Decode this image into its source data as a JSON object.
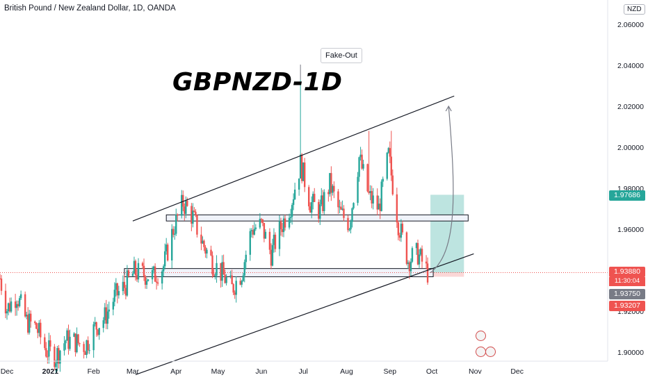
{
  "header": {
    "symbol_line": "British Pound / New Zealand Dollar, 1D, OANDA",
    "currency_badge": "NZD"
  },
  "annotations": {
    "title": "GBPNZD-1D",
    "callout": "Fake-Out"
  },
  "price_tags": {
    "green": "1.97686",
    "last": "1.93880",
    "countdown": "11:30:04",
    "gray": "1.93750",
    "red": "1.93207"
  },
  "colors": {
    "up": "#26a69a",
    "down": "#ef5350",
    "box_fill": "#f0f3fa",
    "tp_zone": "#b2dfdb",
    "sl_zone": "#fbd3d3",
    "last_line": "#ef5350",
    "channel": "#131722"
  },
  "chart_data": {
    "type": "candlestick",
    "title": "",
    "xlabel": "",
    "ylabel": "",
    "ylim": [
      1.888,
      2.068
    ],
    "y_ticks": [
      "2.06000",
      "2.04000",
      "2.02000",
      "2.00000",
      "1.98000",
      "1.96000",
      "1.94000",
      "1.92000",
      "1.90000"
    ],
    "x_ticks": [
      "Dec",
      "2021",
      "Feb",
      "Mar",
      "Apr",
      "May",
      "Jun",
      "Jul",
      "Aug",
      "Sep",
      "Oct",
      "Nov",
      "Dec"
    ],
    "series": [
      {
        "name": "GBPNZD",
        "close_path": [
          [
            "Nov 26 2020",
            1.936
          ],
          [
            "Dec 1 2020",
            1.921
          ],
          [
            "Dec 8 2020",
            1.928
          ],
          [
            "Dec 15 2020",
            1.915
          ],
          [
            "Dec 22 2020",
            1.912
          ],
          [
            "Dec 29 2020",
            1.901
          ],
          [
            "Jan 5 2021",
            1.898
          ],
          [
            "Jan 12 2021",
            1.906
          ],
          [
            "Jan 19 2021",
            1.905
          ],
          [
            "Jan 26 2021",
            1.903
          ],
          [
            "Feb 2 2021",
            1.912
          ],
          [
            "Feb 9 2021",
            1.917
          ],
          [
            "Feb 16 2021",
            1.927
          ],
          [
            "Feb 23 2021",
            1.932
          ],
          [
            "Mar 2 2021",
            1.939
          ],
          [
            "Mar 9 2021",
            1.938
          ],
          [
            "Mar 16 2021",
            1.937
          ],
          [
            "Mar 23 2021",
            1.942
          ],
          [
            "Mar 30 2021",
            1.96
          ],
          [
            "Apr 6 2021",
            1.973
          ],
          [
            "Apr 13 2021",
            1.966
          ],
          [
            "Apr 20 2021",
            1.953
          ],
          [
            "Apr 27 2021",
            1.944
          ],
          [
            "May 4 2021",
            1.938
          ],
          [
            "May 11 2021",
            1.931
          ],
          [
            "May 18 2021",
            1.939
          ],
          [
            "May 25 2021",
            1.96
          ],
          [
            "Jun 1 2021",
            1.962
          ],
          [
            "Jun 8 2021",
            1.948
          ],
          [
            "Jun 15 2021",
            1.961
          ],
          [
            "Jun 22 2021",
            1.972
          ],
          [
            "Jun 29 2021",
            1.992
          ],
          [
            "Jul 6 2021",
            1.973
          ],
          [
            "Jul 13 2021",
            1.969
          ],
          [
            "Jul 20 2021",
            1.982
          ],
          [
            "Jul 27 2021",
            1.968
          ],
          [
            "Aug 3 2021",
            1.963
          ],
          [
            "Aug 10 2021",
            1.995
          ],
          [
            "Aug 17 2021",
            1.976
          ],
          [
            "Aug 24 2021",
            1.97
          ],
          [
            "Aug 31 2021",
            1.996
          ],
          [
            "Sep 7 2021",
            1.963
          ],
          [
            "Sep 14 2021",
            1.945
          ],
          [
            "Sep 21 2021",
            1.948
          ],
          [
            "Sep 28 2021",
            1.9388
          ]
        ],
        "highs": [
          [
            "Jun 29 2021",
            2.033
          ],
          [
            "Aug 17 2021",
            2.008
          ],
          [
            "Sep 2 2021",
            2.008
          ]
        ]
      }
    ],
    "channel": {
      "upper": [
        [
          "Mar 1 2021",
          1.964
        ],
        [
          "Oct 17 2021",
          2.025
        ]
      ],
      "lower": [
        [
          "Mar 3 2021",
          1.889
        ],
        [
          "Oct 31 2021",
          1.948
        ]
      ]
    },
    "zones": [
      {
        "name": "resistance",
        "from": "Mar 25 2021",
        "to": "Oct 27 2021",
        "y": [
          1.964,
          1.967
        ]
      },
      {
        "name": "support",
        "from": "Feb 23 2021",
        "to": "Oct 2 2021",
        "y": [
          1.9368,
          1.9408
        ]
      },
      {
        "name": "target",
        "from": "Sep 30 2021",
        "to": "Oct 24 2021",
        "y": [
          1.9388,
          1.9768
        ]
      },
      {
        "name": "stop",
        "from": "Sep 30 2021",
        "to": "Oct 24 2021",
        "y": [
          1.9368,
          1.9388
        ]
      }
    ],
    "projection": {
      "from": [
        "Sep 30 2021",
        1.9388
      ],
      "to": [
        "Oct 13 2021",
        2.02
      ]
    },
    "grid": false,
    "legend": "none"
  }
}
